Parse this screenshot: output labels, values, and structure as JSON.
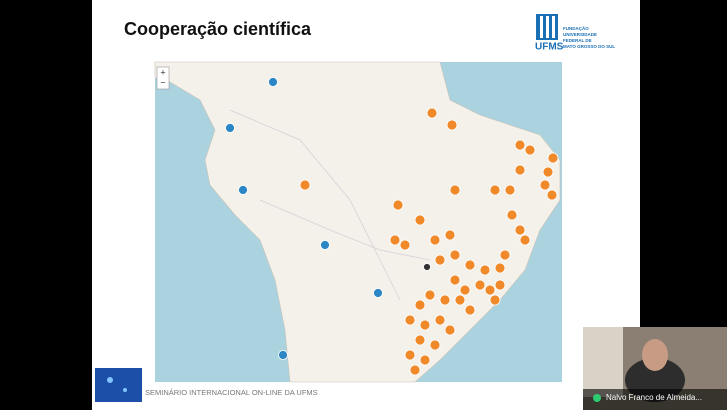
{
  "slide": {
    "title": "Cooperação científica",
    "logo": {
      "acronym": "UFMS",
      "lines": [
        "FUNDAÇÃO",
        "UNIVERSIDADE",
        "FEDERAL DE",
        "MATO GROSSO DO SUL"
      ]
    },
    "footer": "SEMINÁRIO INTERNACIONAL ON-LINE DA UFMS"
  },
  "map": {
    "zoom_in": "+",
    "zoom_out": "−"
  },
  "participant": {
    "name": "Nalvo Franco de Almeida..."
  }
}
